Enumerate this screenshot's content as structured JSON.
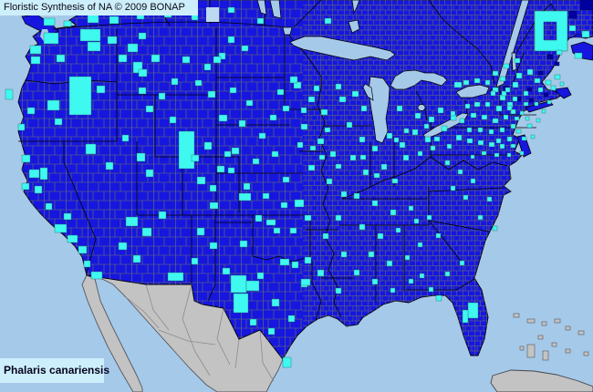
{
  "header": {
    "title": "Floristic Synthesis of NA © 2009 BONAP"
  },
  "footer": {
    "species_name": "Phalaris canariensis"
  },
  "map": {
    "region": "North America county-level distribution",
    "colors": {
      "ocean": "#A5C9E9",
      "lake": "#A5C9E9",
      "pale_lake": "#BCD9F2",
      "land_present": "#1616DF",
      "county_present": "#3FF8F0",
      "absent": "#0000A0",
      "outside": "#C3C3C3",
      "outside_border": "#6A6B72",
      "county_line": "#6F7B5B",
      "muni_line": "#8494A8",
      "political_line": "#000000",
      "label_bg": "#CDEEFB",
      "label_text": "#0A0A14"
    },
    "county_markers": [
      [
        48,
        20,
        12,
        8
      ],
      [
        70,
        23,
        8,
        6
      ],
      [
        96,
        16,
        12,
        9
      ],
      [
        120,
        18,
        10,
        8
      ],
      [
        150,
        14,
        8,
        7
      ],
      [
        180,
        12,
        8,
        7
      ],
      [
        210,
        16,
        7,
        6
      ],
      [
        250,
        8,
        7,
        6
      ],
      [
        282,
        20,
        7,
        6
      ],
      [
        356,
        20,
        7,
        6
      ],
      [
        624,
        28,
        7,
        6
      ],
      [
        638,
        34,
        8,
        7
      ],
      [
        630,
        58,
        8,
        6
      ],
      [
        610,
        55,
        6,
        5
      ],
      [
        88,
        32,
        22,
        13
      ],
      [
        96,
        46,
        14,
        10
      ],
      [
        48,
        36,
        16,
        12
      ],
      [
        33,
        50,
        12,
        9
      ],
      [
        62,
        60,
        9,
        8
      ],
      [
        34,
        62,
        10,
        8
      ],
      [
        118,
        40,
        10,
        8
      ],
      [
        140,
        48,
        11,
        9
      ],
      [
        152,
        36,
        8,
        7
      ],
      [
        130,
        60,
        9,
        8
      ],
      [
        146,
        68,
        10,
        12
      ],
      [
        6,
        98,
        8,
        11
      ],
      [
        52,
        110,
        13,
        11
      ],
      [
        76,
        84,
        24,
        42
      ],
      [
        106,
        94,
        9,
        8
      ],
      [
        30,
        118,
        8,
        7
      ],
      [
        20,
        136,
        7,
        7
      ],
      [
        60,
        130,
        8,
        7
      ],
      [
        152,
        76,
        9,
        8
      ],
      [
        166,
        60,
        9,
        8
      ],
      [
        200,
        62,
        8,
        7
      ],
      [
        224,
        70,
        7,
        7
      ],
      [
        152,
        96,
        8,
        7
      ],
      [
        174,
        102,
        7,
        7
      ],
      [
        188,
        86,
        7,
        7
      ],
      [
        214,
        88,
        7,
        6
      ],
      [
        240,
        58,
        7,
        7
      ],
      [
        160,
        116,
        8,
        7
      ],
      [
        250,
        40,
        7,
        7
      ],
      [
        265,
        50,
        7,
        6
      ],
      [
        228,
        100,
        8,
        7
      ],
      [
        252,
        96,
        7,
        6
      ],
      [
        270,
        110,
        7,
        6
      ],
      [
        296,
        126,
        7,
        6
      ],
      [
        234,
        62,
        8,
        7
      ],
      [
        304,
        98,
        7,
        6
      ],
      [
        322,
        90,
        8,
        7
      ],
      [
        24,
        170,
        9,
        8
      ],
      [
        32,
        186,
        11,
        9
      ],
      [
        24,
        201,
        8,
        7
      ],
      [
        44,
        184,
        8,
        13
      ],
      [
        38,
        204,
        8,
        8
      ],
      [
        60,
        246,
        13,
        9
      ],
      [
        74,
        258,
        11,
        8
      ],
      [
        86,
        270,
        9,
        8
      ],
      [
        70,
        234,
        8,
        7
      ],
      [
        92,
        286,
        7,
        7
      ],
      [
        50,
        223,
        7,
        7
      ],
      [
        94,
        158,
        11,
        11
      ],
      [
        116,
        178,
        8,
        8
      ],
      [
        150,
        168,
        9,
        9
      ],
      [
        160,
        186,
        8,
        8
      ],
      [
        134,
        148,
        7,
        7
      ],
      [
        196,
        144,
        17,
        41
      ],
      [
        224,
        156,
        8,
        8
      ],
      [
        238,
        182,
        8,
        7
      ],
      [
        216,
        194,
        9,
        8
      ],
      [
        230,
        203,
        7,
        7
      ],
      [
        246,
        166,
        7,
        6
      ],
      [
        186,
        128,
        7,
        7
      ],
      [
        210,
        170,
        8,
        7
      ],
      [
        138,
        238,
        13,
        10
      ],
      [
        156,
        250,
        10,
        9
      ],
      [
        130,
        266,
        9,
        8
      ],
      [
        174,
        232,
        8,
        8
      ],
      [
        146,
        280,
        8,
        8
      ],
      [
        216,
        250,
        8,
        8
      ],
      [
        230,
        266,
        8,
        7
      ],
      [
        244,
        294,
        8,
        7
      ],
      [
        100,
        298,
        12,
        8
      ],
      [
        184,
        299,
        17,
        9
      ],
      [
        210,
        283,
        7,
        7
      ],
      [
        253,
        302,
        17,
        19
      ],
      [
        256,
        322,
        16,
        21
      ],
      [
        298,
        328,
        8,
        8
      ],
      [
        316,
        346,
        7,
        7
      ],
      [
        330,
        308,
        7,
        7
      ],
      [
        294,
        360,
        7,
        7
      ],
      [
        310,
        392,
        9,
        11
      ],
      [
        282,
        299,
        7,
        7
      ],
      [
        320,
        287,
        7,
        7
      ],
      [
        274,
        350,
        7,
        7
      ],
      [
        270,
        308,
        14,
        11
      ],
      [
        330,
        306,
        10,
        7
      ],
      [
        307,
        284,
        10,
        7
      ],
      [
        262,
        212,
        13,
        8
      ],
      [
        323,
        219,
        10,
        8
      ],
      [
        292,
        241,
        10,
        6
      ],
      [
        254,
        162,
        8,
        7
      ],
      [
        277,
        174,
        7,
        6
      ],
      [
        298,
        166,
        7,
        6
      ],
      [
        267,
        201,
        7,
        7
      ],
      [
        288,
        212,
        7,
        6
      ],
      [
        308,
        222,
        7,
        6
      ],
      [
        280,
        236,
        7,
        7
      ],
      [
        300,
        250,
        7,
        6
      ],
      [
        263,
        264,
        8,
        7
      ],
      [
        318,
        250,
        7,
        6
      ],
      [
        334,
        236,
        7,
        6
      ],
      [
        240,
        126,
        9,
        7
      ],
      [
        250,
        184,
        7,
        6
      ],
      [
        310,
        194,
        7,
        6
      ],
      [
        262,
        132,
        7,
        7
      ],
      [
        284,
        146,
        7,
        6
      ],
      [
        230,
        222,
        9,
        7
      ],
      [
        318,
        84,
        8,
        7
      ],
      [
        338,
        106,
        7,
        6
      ],
      [
        352,
        120,
        7,
        6
      ],
      [
        330,
        136,
        7,
        6
      ],
      [
        348,
        152,
        7,
        6
      ],
      [
        362,
        166,
        6,
        6
      ],
      [
        338,
        181,
        7,
        6
      ],
      [
        358,
        196,
        6,
        6
      ],
      [
        374,
        210,
        6,
        6
      ],
      [
        344,
        94,
        6,
        6
      ],
      [
        310,
        116,
        7,
        6
      ],
      [
        326,
        156,
        6,
        6
      ],
      [
        372,
        106,
        7,
        6
      ],
      [
        386,
        100,
        7,
        6
      ],
      [
        396,
        116,
        6,
        6
      ],
      [
        368,
        92,
        6,
        6
      ],
      [
        380,
        134,
        6,
        6
      ],
      [
        394,
        150,
        6,
        6
      ],
      [
        408,
        160,
        6,
        6
      ],
      [
        424,
        146,
        6,
        6
      ],
      [
        438,
        156,
        6,
        6
      ],
      [
        452,
        142,
        6,
        6
      ],
      [
        466,
        150,
        6,
        6
      ],
      [
        384,
        170,
        6,
        6
      ],
      [
        398,
        186,
        6,
        6
      ],
      [
        418,
        180,
        6,
        6
      ],
      [
        442,
        170,
        6,
        6
      ],
      [
        458,
        166,
        5,
        5
      ],
      [
        472,
        160,
        5,
        5
      ],
      [
        435,
        116,
        6,
        6
      ],
      [
        455,
        124,
        6,
        6
      ],
      [
        465,
        136,
        5,
        5
      ],
      [
        443,
        141,
        5,
        5
      ],
      [
        432,
        151,
        5,
        5
      ],
      [
        330,
        118,
        6,
        6
      ],
      [
        356,
        140,
        6,
        5
      ],
      [
        368,
        180,
        6,
        5
      ],
      [
        350,
        170,
        6,
        5
      ],
      [
        340,
        160,
        6,
        5
      ],
      [
        395,
        170,
        6,
        5
      ],
      [
        410,
        190,
        6,
        5
      ],
      [
        430,
        196,
        6,
        5
      ],
      [
        470,
        128,
        6,
        6
      ],
      [
        484,
        138,
        6,
        6
      ],
      [
        480,
        118,
        6,
        6
      ],
      [
        494,
        126,
        6,
        6
      ],
      [
        476,
        150,
        6,
        5
      ],
      [
        490,
        158,
        5,
        5
      ],
      [
        498,
        90,
        8,
        6
      ],
      [
        508,
        88,
        6,
        5
      ],
      [
        520,
        86,
        6,
        5
      ],
      [
        532,
        88,
        5,
        5
      ],
      [
        540,
        96,
        6,
        5
      ],
      [
        548,
        104,
        6,
        6
      ],
      [
        556,
        112,
        6,
        6
      ],
      [
        544,
        116,
        6,
        6
      ],
      [
        532,
        112,
        5,
        5
      ],
      [
        520,
        112,
        6,
        5
      ],
      [
        510,
        114,
        5,
        5
      ],
      [
        516,
        124,
        6,
        5
      ],
      [
        528,
        126,
        6,
        5
      ],
      [
        540,
        130,
        6,
        5
      ],
      [
        552,
        126,
        5,
        5
      ],
      [
        560,
        120,
        5,
        5
      ],
      [
        504,
        130,
        5,
        5
      ],
      [
        494,
        122,
        5,
        5
      ],
      [
        548,
        140,
        5,
        5
      ],
      [
        536,
        142,
        5,
        5
      ],
      [
        524,
        140,
        5,
        5
      ],
      [
        560,
        136,
        5,
        5
      ],
      [
        512,
        140,
        5,
        5
      ],
      [
        556,
        150,
        5,
        5
      ],
      [
        544,
        152,
        5,
        5
      ],
      [
        500,
        148,
        6,
        6
      ],
      [
        512,
        152,
        6,
        5
      ],
      [
        524,
        154,
        6,
        5
      ],
      [
        536,
        156,
        6,
        5
      ],
      [
        548,
        158,
        5,
        5
      ],
      [
        560,
        158,
        5,
        4
      ],
      [
        572,
        150,
        5,
        4
      ],
      [
        528,
        166,
        5,
        4
      ],
      [
        542,
        168,
        5,
        4
      ],
      [
        556,
        168,
        4,
        4
      ],
      [
        516,
        170,
        4,
        4
      ],
      [
        570,
        166,
        4,
        4
      ],
      [
        582,
        148,
        4,
        4
      ],
      [
        566,
        142,
        5,
        4
      ],
      [
        578,
        136,
        5,
        4
      ],
      [
        588,
        130,
        4,
        4
      ],
      [
        576,
        128,
        4,
        4
      ],
      [
        564,
        128,
        5,
        4
      ],
      [
        586,
        112,
        4,
        4
      ],
      [
        574,
        112,
        5,
        4
      ],
      [
        562,
        106,
        5,
        5
      ],
      [
        550,
        100,
        5,
        5
      ],
      [
        538,
        100,
        5,
        5
      ],
      [
        594,
        120,
        4,
        4
      ],
      [
        600,
        110,
        4,
        4
      ],
      [
        562,
        90,
        6,
        6
      ],
      [
        574,
        100,
        5,
        5
      ],
      [
        554,
        96,
        5,
        5
      ],
      [
        586,
        86,
        6,
        5
      ],
      [
        598,
        88,
        6,
        5
      ],
      [
        608,
        82,
        6,
        5
      ],
      [
        566,
        80,
        6,
        6
      ],
      [
        578,
        76,
        6,
        6
      ],
      [
        590,
        96,
        5,
        5
      ],
      [
        604,
        94,
        5,
        5
      ],
      [
        614,
        90,
        4,
        4
      ],
      [
        556,
        116,
        5,
        5
      ],
      [
        570,
        122,
        4,
        4
      ],
      [
        548,
        84,
        6,
        5
      ],
      [
        540,
        78,
        6,
        5
      ],
      [
        552,
        70,
        6,
        5
      ],
      [
        564,
        64,
        6,
        5
      ],
      [
        388,
        212,
        6,
        6
      ],
      [
        408,
        220,
        6,
        6
      ],
      [
        428,
        230,
        6,
        6
      ],
      [
        448,
        226,
        5,
        5
      ],
      [
        394,
        246,
        6,
        6
      ],
      [
        414,
        256,
        6,
        6
      ],
      [
        434,
        250,
        5,
        5
      ],
      [
        454,
        240,
        5,
        5
      ],
      [
        468,
        236,
        5,
        5
      ],
      [
        404,
        276,
        6,
        6
      ],
      [
        424,
        286,
        6,
        6
      ],
      [
        444,
        280,
        5,
        5
      ],
      [
        458,
        266,
        5,
        5
      ],
      [
        478,
        256,
        5,
        5
      ],
      [
        368,
        236,
        6,
        6
      ],
      [
        354,
        256,
        6,
        6
      ],
      [
        374,
        276,
        6,
        6
      ],
      [
        388,
        296,
        6,
        6
      ],
      [
        408,
        306,
        6,
        6
      ],
      [
        428,
        316,
        5,
        5
      ],
      [
        448,
        306,
        5,
        5
      ],
      [
        368,
        316,
        6,
        6
      ],
      [
        348,
        296,
        7,
        7
      ],
      [
        334,
        282,
        7,
        7
      ],
      [
        494,
        204,
        5,
        5
      ],
      [
        508,
        214,
        5,
        5
      ],
      [
        524,
        236,
        5,
        5
      ],
      [
        540,
        248,
        5,
        5
      ],
      [
        516,
        196,
        5,
        5
      ],
      [
        502,
        186,
        5,
        5
      ],
      [
        488,
        176,
        5,
        5
      ],
      [
        534,
        216,
        5,
        5
      ],
      [
        488,
        298,
        5,
        5
      ],
      [
        504,
        286,
        5,
        5
      ],
      [
        460,
        300,
        5,
        5
      ],
      [
        470,
        315,
        5,
        5
      ],
      [
        513,
        332,
        11,
        17
      ],
      [
        507,
        340,
        6,
        14
      ],
      [
        478,
        324,
        6,
        6
      ]
    ],
    "maine_ring": {
      "outer": [
        586,
        12,
        36,
        44
      ],
      "hole": [
        596,
        24,
        14,
        20
      ]
    },
    "absent_markers": [
      [
        552,
        94,
        6,
        6
      ],
      [
        566,
        106,
        5,
        5
      ],
      [
        578,
        96,
        5,
        4
      ],
      [
        544,
        116,
        4,
        4
      ],
      [
        596,
        102,
        5,
        4
      ],
      [
        636,
        0,
        14,
        11
      ],
      [
        624,
        12,
        8,
        8
      ],
      [
        590,
        78,
        5,
        4
      ],
      [
        608,
        68,
        5,
        4
      ],
      [
        580,
        108,
        5,
        4
      ],
      [
        600,
        60,
        6,
        5
      ]
    ]
  }
}
